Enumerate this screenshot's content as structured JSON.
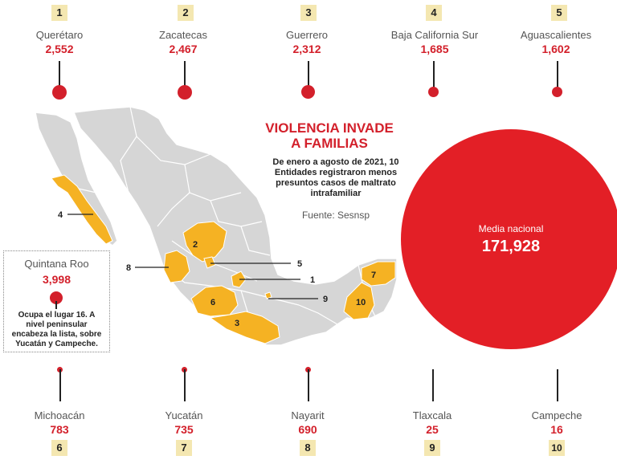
{
  "title": "VIOLENCIA INVADE A FAMILIAS",
  "title_line1": "VIOLENCIA INVADE",
  "title_line2": "A FAMILIAS",
  "subtitle": "De enero a agosto de 2021, 10 Entidades registraron menos presuntos casos de maltrato intrafamiliar",
  "source": "Fuente: Sesnsp",
  "national": {
    "label": "Media nacional",
    "value": "171,928",
    "amount": 171928
  },
  "top": [
    {
      "rank": "1",
      "name": "Querétaro",
      "value": "2,552",
      "amount": 2552
    },
    {
      "rank": "2",
      "name": "Zacatecas",
      "value": "2,467",
      "amount": 2467
    },
    {
      "rank": "3",
      "name": "Guerrero",
      "value": "2,312",
      "amount": 2312
    },
    {
      "rank": "4",
      "name": "Baja California Sur",
      "value": "1,685",
      "amount": 1685
    },
    {
      "rank": "5",
      "name": "Aguascalientes",
      "value": "1,602",
      "amount": 1602
    }
  ],
  "bottom": [
    {
      "rank": "6",
      "name": "Michoacán",
      "value": "783",
      "amount": 783
    },
    {
      "rank": "7",
      "name": "Yucatán",
      "value": "735",
      "amount": 735
    },
    {
      "rank": "8",
      "name": "Nayarit",
      "value": "690",
      "amount": 690
    },
    {
      "rank": "9",
      "name": "Tlaxcala",
      "value": "25",
      "amount": 25
    },
    {
      "rank": "10",
      "name": "Campeche",
      "value": "16",
      "amount": 16
    }
  ],
  "highlight": {
    "name": "Quintana Roo",
    "value": "3,998",
    "amount": 3998,
    "note": "Ocupa el lugar 16. A nivel peninsular encabeza la lista, sobre Yucatán y Campeche."
  },
  "map_labels": [
    "1",
    "2",
    "3",
    "4",
    "5",
    "6",
    "7",
    "8",
    "9",
    "10"
  ],
  "colors": {
    "accent": "#d3202b",
    "national": "#e31f26",
    "highlight_state": "#f5b223",
    "land": "#d6d6d6",
    "badge": "#f4e7b1"
  }
}
